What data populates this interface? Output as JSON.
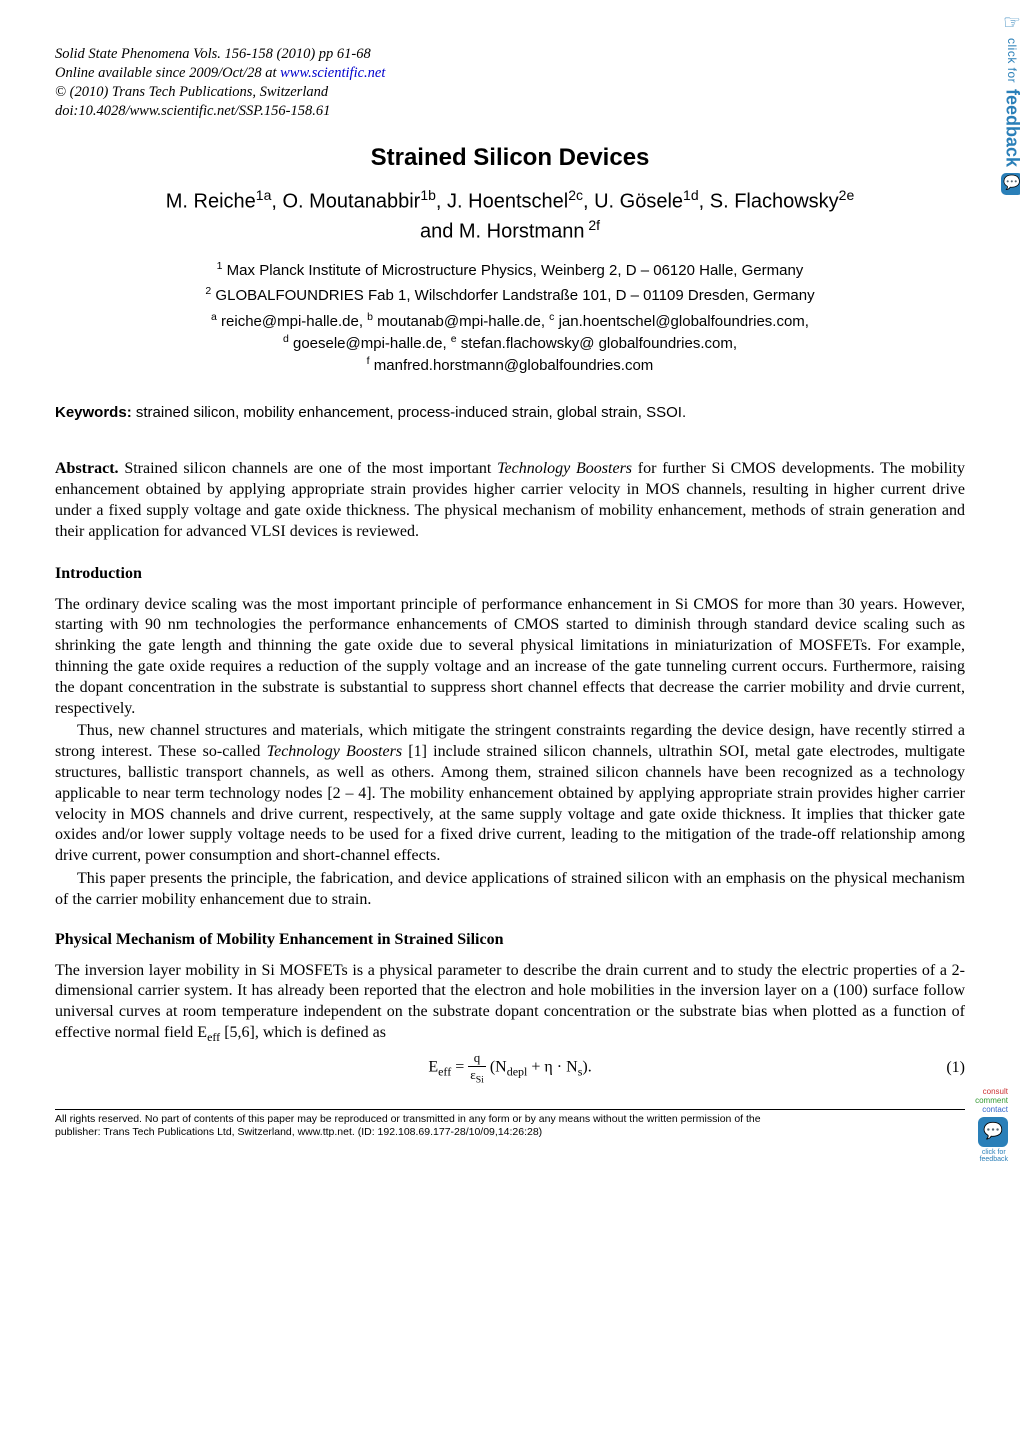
{
  "journal_header": {
    "line1_a": "Solid State Phenomena Vols. 156-158 (2010) pp 61-68",
    "line2_a": "Online available since 2009/Oct/28 at ",
    "line2_link": "www.scientific.net",
    "line3": "© (2010) Trans Tech Publications, Switzerland",
    "line4": "doi:10.4028/www.scientific.net/SSP.156-158.61"
  },
  "title": "Strained Silicon Devices",
  "authors": {
    "line1": "M. Reiche<sup>1a</sup>, O. Moutanabbir<sup>1b</sup>, J. Hoentschel<sup>2c</sup>, U. Gösele<sup>1d</sup>, S. Flachowsky<sup>2e</sup>",
    "line2": "and M. Horstmann<sup> 2f</sup>"
  },
  "affiliations": {
    "a1": "<sup>1</sup> Max Planck Institute of Microstructure Physics, Weinberg 2, D – 06120 Halle, Germany",
    "a2": "<sup>2</sup> GLOBALFOUNDRIES Fab 1, Wilschdorfer Landstraße 101, D – 01109 Dresden, Germany"
  },
  "emails": {
    "l1": "<sup>a</sup> reiche@mpi-halle.de, <sup>b</sup> moutanab@mpi-halle.de, <sup>c</sup> jan.hoentschel@globalfoundries.com,",
    "l2": "<sup>d</sup> goesele@mpi-halle.de, <sup>e</sup> stefan.flachowsky@ globalfoundries.com,",
    "l3": "<sup>f</sup> manfred.horstmann@globalfoundries.com"
  },
  "keywords": {
    "label": "Keywords:",
    "text": " strained silicon, mobility enhancement, process-induced strain, global strain, SSOI."
  },
  "abstract": {
    "label": "Abstract.",
    "text": " Strained silicon channels are one of the most important <span class=\"italic\">Technology Boosters</span> for further Si CMOS developments. The mobility enhancement obtained by applying appropriate strain provides higher carrier velocity in MOS channels, resulting in higher current drive under a fixed supply voltage and gate oxide thickness. The physical mechanism of mobility enhancement, methods of strain generation and their application for advanced VLSI devices is reviewed."
  },
  "sections": {
    "intro": {
      "heading": "Introduction",
      "p1": "The ordinary device scaling was the most important principle of performance enhancement in Si CMOS for more than 30 years. However, starting with 90 nm technologies the performance enhancements of CMOS started to diminish through standard device scaling such as shrinking the gate length and thinning the gate oxide due to several physical limitations in miniaturization of MOSFETs. For example, thinning the gate oxide requires a reduction of the supply voltage and an increase of the gate tunneling current occurs. Furthermore, raising the dopant concentration in the substrate is substantial to suppress short channel effects that decrease the carrier mobility and drvie current, respectively.",
      "p2": "Thus, new channel structures and materials, which mitigate the stringent constraints regarding the device design, have recently stirred a strong interest. These so-called <span class=\"italic\">Technology Boosters</span> [1] include strained silicon channels, ultrathin SOI, metal gate electrodes, multigate structures, ballistic transport channels, as well as others. Among them, strained silicon channels have been recognized as a technology applicable to near term technology nodes [2 – 4]. The mobility enhancement obtained by applying appropriate strain provides higher carrier velocity in MOS channels and drive current, respectively, at the same supply voltage and gate oxide thickness. It implies that thicker gate oxides and/or lower supply voltage needs to be used for a fixed drive current, leading to the mitigation of the trade-off relationship among drive current, power consumption and short-channel effects.",
      "p3": "This paper presents the principle, the fabrication, and device applications of strained silicon with an emphasis on the physical mechanism of the carrier mobility enhancement due to strain."
    },
    "mechanism": {
      "heading": "Physical Mechanism of Mobility Enhancement in Strained Silicon",
      "p1": "The inversion layer mobility in Si MOSFETs is a physical parameter to describe the drain current and to study the electric properties of a 2-dimensional carrier system. It has already been reported that the electron and hole mobilities in the inversion layer on a (100) surface follow universal curves at room temperature independent on the substrate dopant concentration or the substrate bias when plotted as a function of effective normal field E<sub>eff</sub> [5,6], which is defined as",
      "eq": "E<sub>eff</sub> = <span style=\"display:inline-block;vertical-align:middle;text-align:center;\"><span style=\"display:block;border-bottom:1px solid #000;padding:0 3px;font-size:13px;\">q</span><span style=\"display:block;font-size:13px;padding:0 2px;\">ε<sub>Si</sub></span></span> (N<sub>depl</sub> + η · N<sub>s</sub>).",
      "eq_num": "(1)"
    }
  },
  "sidebar": {
    "click_for": "click for",
    "feedback": "feedback"
  },
  "bottom_badge": {
    "consult": "consult",
    "comment": "comment",
    "contact": "contact",
    "click_for": "click for",
    "feedback": "feedback"
  },
  "footer": {
    "l1": "All rights reserved. No part of contents of this paper may be reproduced or transmitted in any form or by any means without the written permission of the",
    "l2": "publisher: Trans Tech Publications Ltd, Switzerland, www.ttp.net. (ID: 192.108.69.177-28/10/09,14:26:28)"
  },
  "style": {
    "link_color": "#0000cc",
    "sidebar_color": "#2a7fb8",
    "consult_color": "#cc3333",
    "comment_color": "#339933",
    "contact_color": "#3366cc",
    "bg": "#ffffff"
  }
}
